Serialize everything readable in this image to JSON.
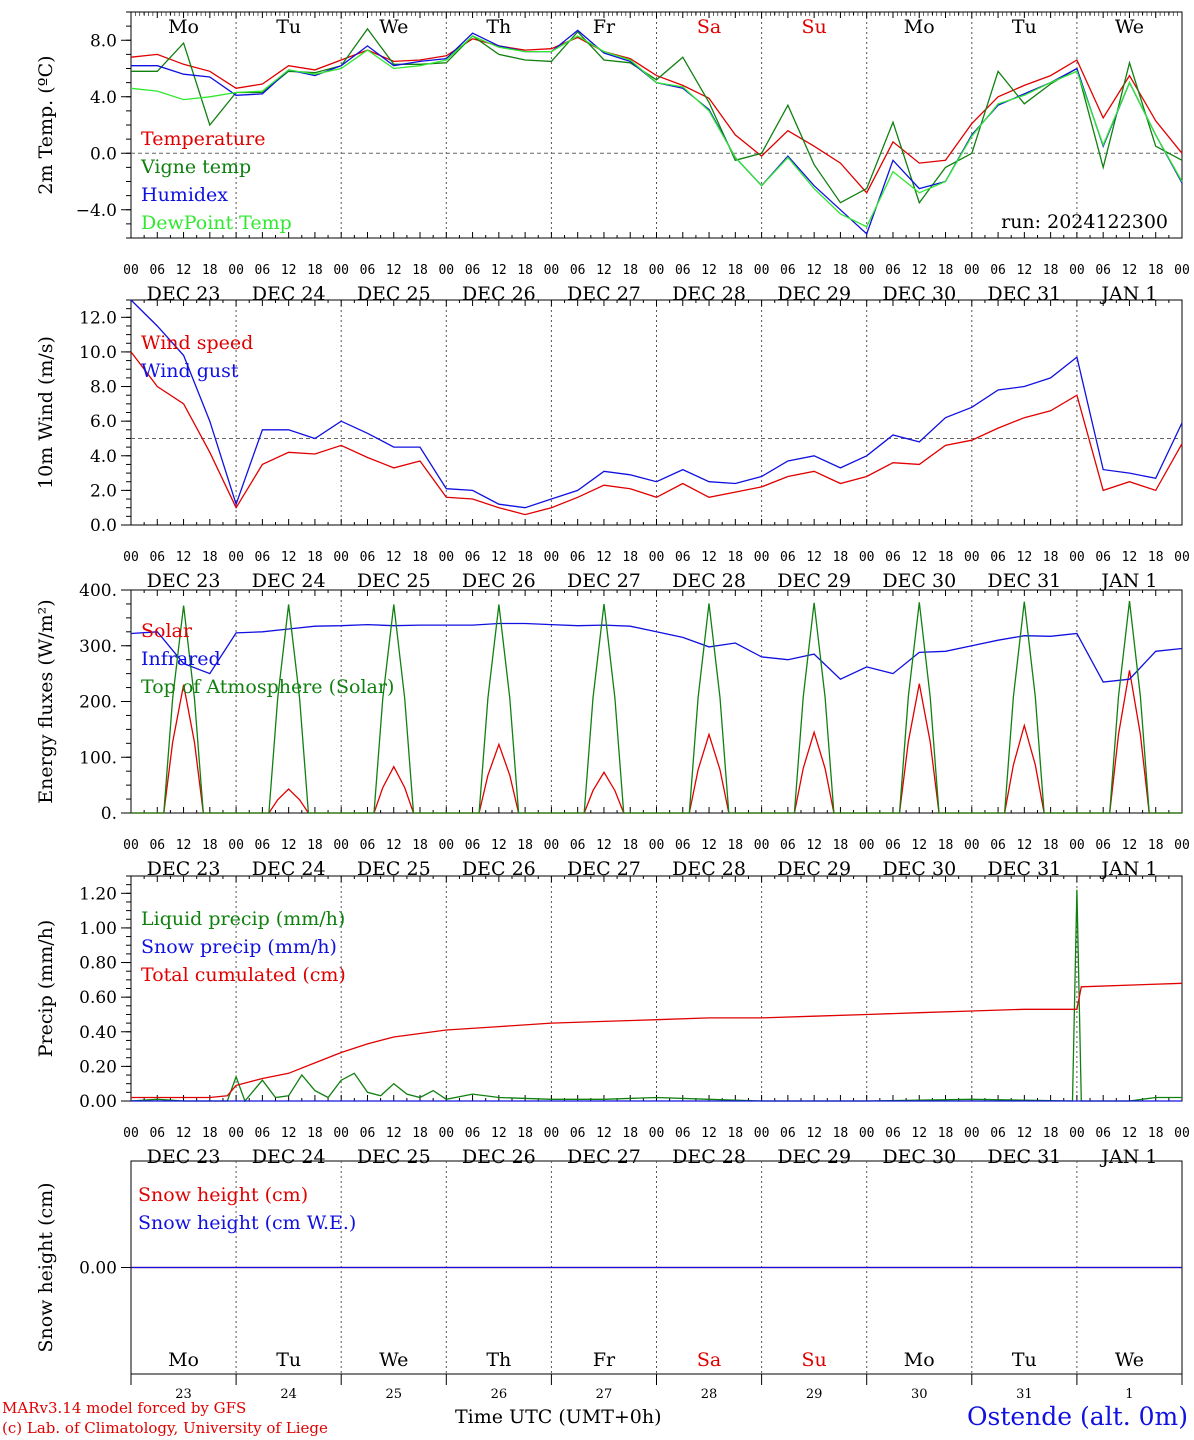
{
  "footer": {
    "credit_line1": "MARv3.14 model forced by GFS",
    "credit_line2": "(c) Lab. of Climatology, University of Liege",
    "xaxis_title": "Time UTC (UMT+0h)",
    "station": "Ostende (alt. 0m)"
  },
  "colors": {
    "red": "#e00000",
    "green": "#108010",
    "blue": "#1010e0",
    "lightgreen": "#30e830",
    "grid": "#555555"
  },
  "day_names": [
    "Mo",
    "Tu",
    "We",
    "Th",
    "Fr",
    "Sa",
    "Su",
    "Mo",
    "Tu",
    "We"
  ],
  "weekend_days": [
    5,
    6
  ],
  "day_numbers": [
    "23",
    "24",
    "25",
    "26",
    "27",
    "28",
    "29",
    "30",
    "31",
    "1"
  ],
  "date_labels": [
    "DEC 23",
    "DEC 24",
    "DEC 25",
    "DEC 26",
    "DEC 27",
    "DEC 28",
    "DEC 29",
    "DEC 30",
    "DEC 31",
    "JAN  1"
  ],
  "hour_labels": [
    "00",
    "06",
    "12",
    "18"
  ],
  "final_hour_label": "00",
  "chart_data": [
    {
      "type": "line",
      "ylabel": "2m Temp. (ºC)",
      "ylim": [
        -6.0,
        10.0
      ],
      "yticks": [
        -4.0,
        0.0,
        4.0,
        8.0
      ],
      "ytick_labels": [
        "−4.0",
        "0.0",
        "4.0",
        "8.0"
      ],
      "reference_line": 0.0,
      "x_unit": "hours since DEC 23 00 UTC",
      "annotation": "run: 2024122300",
      "series": [
        {
          "name": "Temperature",
          "color": "#e00000",
          "x": [
            0,
            6,
            12,
            18,
            24,
            30,
            36,
            42,
            48,
            54,
            60,
            66,
            72,
            78,
            84,
            90,
            96,
            102,
            108,
            114,
            120,
            126,
            132,
            138,
            144,
            150,
            156,
            162,
            168,
            174,
            180,
            186,
            192,
            198,
            204,
            210,
            216,
            222,
            228,
            234,
            240
          ],
          "values": [
            6.8,
            7.0,
            6.3,
            5.8,
            4.6,
            4.9,
            6.2,
            5.9,
            6.6,
            7.3,
            6.5,
            6.6,
            6.9,
            8.1,
            7.6,
            7.3,
            7.4,
            8.2,
            7.2,
            6.7,
            5.5,
            4.8,
            3.9,
            1.3,
            -0.2,
            1.6,
            0.5,
            -0.7,
            -2.8,
            0.8,
            -0.7,
            -0.5,
            2.1,
            4.0,
            4.8,
            5.5,
            6.6,
            2.5,
            5.5,
            2.3,
            0.0
          ]
        },
        {
          "name": "Vigne temp",
          "color": "#108010",
          "x": [
            0,
            6,
            12,
            18,
            24,
            30,
            36,
            42,
            48,
            54,
            60,
            66,
            72,
            78,
            84,
            90,
            96,
            102,
            108,
            114,
            120,
            126,
            132,
            138,
            144,
            150,
            156,
            162,
            168,
            174,
            180,
            186,
            192,
            198,
            204,
            210,
            216,
            222,
            228,
            234,
            240
          ],
          "values": [
            5.8,
            5.8,
            7.8,
            2.0,
            4.3,
            4.3,
            5.8,
            5.7,
            6.2,
            8.8,
            6.3,
            6.3,
            6.4,
            8.3,
            7.0,
            6.6,
            6.5,
            8.6,
            6.6,
            6.4,
            5.2,
            6.8,
            3.6,
            -0.5,
            0.0,
            3.4,
            -0.8,
            -3.5,
            -2.5,
            2.2,
            -3.5,
            -1.0,
            0.0,
            5.8,
            3.5,
            4.9,
            6.0,
            -1.0,
            6.4,
            0.5,
            -0.5
          ]
        },
        {
          "name": "Humidex",
          "color": "#1010e0",
          "x": [
            0,
            6,
            12,
            18,
            24,
            30,
            36,
            42,
            48,
            54,
            60,
            66,
            72,
            78,
            84,
            90,
            96,
            102,
            108,
            114,
            120,
            126,
            132,
            138,
            144,
            150,
            156,
            162,
            168,
            174,
            180,
            186,
            192,
            198,
            204,
            210,
            216,
            222,
            228,
            234,
            240
          ],
          "values": [
            6.2,
            6.2,
            5.6,
            5.4,
            4.1,
            4.2,
            5.9,
            5.5,
            6.2,
            7.6,
            6.2,
            6.5,
            6.7,
            8.5,
            7.6,
            7.2,
            7.2,
            8.7,
            7.1,
            6.5,
            5.0,
            4.6,
            3.1,
            -0.3,
            -2.3,
            -0.2,
            -2.3,
            -4.0,
            -5.7,
            -0.5,
            -2.5,
            -2.0,
            1.3,
            3.4,
            4.2,
            5.0,
            6.0,
            0.5,
            5.0,
            1.3,
            -2.1
          ]
        },
        {
          "name": "DewPoint Temp",
          "color": "#30e830",
          "x": [
            0,
            6,
            12,
            18,
            24,
            30,
            36,
            42,
            48,
            54,
            60,
            66,
            72,
            78,
            84,
            90,
            96,
            102,
            108,
            114,
            120,
            126,
            132,
            138,
            144,
            150,
            156,
            162,
            168,
            174,
            180,
            186,
            192,
            198,
            204,
            210,
            216,
            222,
            228,
            234,
            240
          ],
          "values": [
            4.6,
            4.4,
            3.8,
            4.0,
            4.3,
            4.4,
            5.9,
            5.6,
            6.0,
            7.3,
            6.0,
            6.2,
            6.6,
            8.3,
            7.5,
            7.2,
            7.2,
            8.3,
            7.2,
            6.6,
            5.0,
            4.7,
            3.0,
            -0.3,
            -2.3,
            -0.3,
            -2.5,
            -4.3,
            -5.2,
            -1.3,
            -2.8,
            -2.0,
            1.2,
            3.5,
            4.1,
            5.0,
            5.8,
            0.6,
            5.0,
            1.3,
            -2.0
          ]
        }
      ]
    },
    {
      "type": "line",
      "ylabel": "10m Wind (m/s)",
      "ylim": [
        0.0,
        13.0
      ],
      "yticks": [
        0.0,
        2.0,
        4.0,
        6.0,
        8.0,
        10.0,
        12.0
      ],
      "ytick_labels": [
        "0.0",
        "2.0",
        "4.0",
        "6.0",
        "8.0",
        "10.0",
        "12.0"
      ],
      "reference_line": 5.0,
      "x_unit": "hours since DEC 23 00 UTC",
      "series": [
        {
          "name": "Wind speed",
          "color": "#e00000",
          "x": [
            0,
            6,
            12,
            18,
            24,
            30,
            36,
            42,
            48,
            54,
            60,
            66,
            72,
            78,
            84,
            90,
            96,
            102,
            108,
            114,
            120,
            126,
            132,
            138,
            144,
            150,
            156,
            162,
            168,
            174,
            180,
            186,
            192,
            198,
            204,
            210,
            216,
            222,
            228,
            234,
            240
          ],
          "values": [
            10.0,
            8.0,
            7.0,
            4.2,
            1.0,
            3.5,
            4.2,
            4.1,
            4.6,
            3.9,
            3.3,
            3.7,
            1.6,
            1.5,
            1.0,
            0.6,
            1.0,
            1.6,
            2.3,
            2.1,
            1.6,
            2.4,
            1.6,
            1.9,
            2.2,
            2.8,
            3.1,
            2.4,
            2.8,
            3.6,
            3.5,
            4.6,
            4.9,
            5.6,
            6.2,
            6.6,
            7.5,
            2.0,
            2.5,
            2.0,
            4.7
          ]
        },
        {
          "name": "Wind gust",
          "color": "#1010e0",
          "x": [
            0,
            6,
            12,
            18,
            24,
            30,
            36,
            42,
            48,
            54,
            60,
            66,
            72,
            78,
            84,
            90,
            96,
            102,
            108,
            114,
            120,
            126,
            132,
            138,
            144,
            150,
            156,
            162,
            168,
            174,
            180,
            186,
            192,
            198,
            204,
            210,
            216,
            222,
            228,
            234,
            240
          ],
          "values": [
            13.0,
            11.5,
            9.8,
            6.0,
            1.2,
            5.5,
            5.5,
            5.0,
            6.0,
            5.3,
            4.5,
            4.5,
            2.1,
            2.0,
            1.2,
            1.0,
            1.5,
            2.0,
            3.1,
            2.9,
            2.5,
            3.2,
            2.5,
            2.4,
            2.8,
            3.7,
            4.0,
            3.3,
            4.0,
            5.2,
            4.8,
            6.2,
            6.8,
            7.8,
            8.0,
            8.5,
            9.7,
            3.2,
            3.0,
            2.7,
            5.9
          ]
        }
      ]
    },
    {
      "type": "line",
      "ylabel": "Energy fluxes (W/m²)",
      "ylim": [
        0,
        400
      ],
      "yticks": [
        0,
        100,
        200,
        300,
        400
      ],
      "ytick_labels": [
        "0.",
        "100.",
        "200.",
        "300.",
        "400."
      ],
      "x_unit": "hours since DEC 23 00 UTC",
      "series": [
        {
          "name": "Solar",
          "color": "#e00000",
          "daily_peaks": [
            230,
            43,
            83,
            123,
            73,
            141,
            145,
            232,
            157,
            256
          ]
        },
        {
          "name": "Infrared",
          "color": "#1010e0",
          "x": [
            0,
            6,
            12,
            18,
            24,
            30,
            36,
            42,
            48,
            54,
            60,
            66,
            72,
            78,
            84,
            90,
            96,
            102,
            108,
            114,
            120,
            126,
            132,
            138,
            144,
            150,
            156,
            162,
            168,
            174,
            180,
            186,
            192,
            198,
            204,
            210,
            216,
            222,
            228,
            234,
            240
          ],
          "values": [
            322,
            325,
            268,
            250,
            323,
            325,
            330,
            335,
            336,
            338,
            336,
            337,
            337,
            337,
            340,
            340,
            338,
            336,
            337,
            335,
            325,
            315,
            298,
            305,
            280,
            275,
            285,
            240,
            262,
            250,
            288,
            290,
            300,
            310,
            318,
            317,
            322,
            235,
            240,
            290,
            295
          ]
        },
        {
          "name": "Top of Atmosphere (Solar)",
          "color": "#108010",
          "daily_peaks": [
            372,
            374,
            374,
            374,
            375,
            376,
            377,
            378,
            379,
            380
          ]
        }
      ]
    },
    {
      "type": "line",
      "ylabel": "Precip (mm/h)",
      "ylim": [
        0.0,
        1.3
      ],
      "yticks": [
        0.0,
        0.2,
        0.4,
        0.6,
        0.8,
        1.0,
        1.2
      ],
      "ytick_labels": [
        "0.00",
        "0.20",
        "0.40",
        "0.60",
        "0.80",
        "1.00",
        "1.20"
      ],
      "x_unit": "hours since DEC 23 00 UTC",
      "series": [
        {
          "name": "Liquid precip (mm/h)",
          "color": "#108010",
          "x": [
            0,
            6,
            12,
            18,
            22,
            24,
            26,
            30,
            33,
            36,
            39,
            42,
            45,
            48,
            51,
            54,
            57,
            60,
            63,
            66,
            69,
            72,
            78,
            84,
            96,
            108,
            120,
            132,
            144,
            168,
            192,
            215,
            216,
            217,
            218,
            228,
            234,
            240
          ],
          "values": [
            0.0,
            0.01,
            0.0,
            0.0,
            0.0,
            0.14,
            0.0,
            0.12,
            0.02,
            0.03,
            0.15,
            0.06,
            0.02,
            0.12,
            0.16,
            0.05,
            0.03,
            0.1,
            0.04,
            0.02,
            0.06,
            0.01,
            0.04,
            0.02,
            0.01,
            0.01,
            0.02,
            0.01,
            0.0,
            0.0,
            0.01,
            0.0,
            1.22,
            0.0,
            0.0,
            0.0,
            0.02,
            0.02
          ]
        },
        {
          "name": "Snow precip (mm/h)",
          "color": "#1010e0",
          "x": [
            0,
            24,
            240
          ],
          "values": [
            0.0,
            0.0,
            0.0
          ]
        },
        {
          "name": "Total cumulated (cm)",
          "color": "#e00000",
          "x": [
            0,
            6,
            12,
            18,
            22,
            24,
            30,
            36,
            42,
            48,
            54,
            60,
            66,
            72,
            84,
            96,
            108,
            120,
            132,
            144,
            156,
            168,
            180,
            192,
            204,
            212,
            214,
            216,
            217,
            240
          ],
          "values": [
            0.02,
            0.02,
            0.02,
            0.02,
            0.03,
            0.09,
            0.13,
            0.16,
            0.22,
            0.28,
            0.33,
            0.37,
            0.39,
            0.41,
            0.43,
            0.45,
            0.46,
            0.47,
            0.48,
            0.48,
            0.49,
            0.5,
            0.51,
            0.52,
            0.53,
            0.53,
            0.53,
            0.53,
            0.66,
            0.68
          ]
        }
      ]
    },
    {
      "type": "line",
      "ylabel": "Snow height (cm)",
      "ylim": [
        -1.0,
        1.0
      ],
      "yticks": [
        0.0
      ],
      "ytick_labels": [
        "0.00"
      ],
      "x_unit": "hours since DEC 23 00 UTC",
      "series": [
        {
          "name": "Snow height (cm)",
          "color": "#e00000",
          "x": [
            0,
            240
          ],
          "values": [
            0.0,
            0.0
          ]
        },
        {
          "name": "Snow height (cm W.E.)",
          "color": "#1010e0",
          "x": [
            0,
            240
          ],
          "values": [
            0.0,
            0.0
          ]
        }
      ]
    }
  ]
}
